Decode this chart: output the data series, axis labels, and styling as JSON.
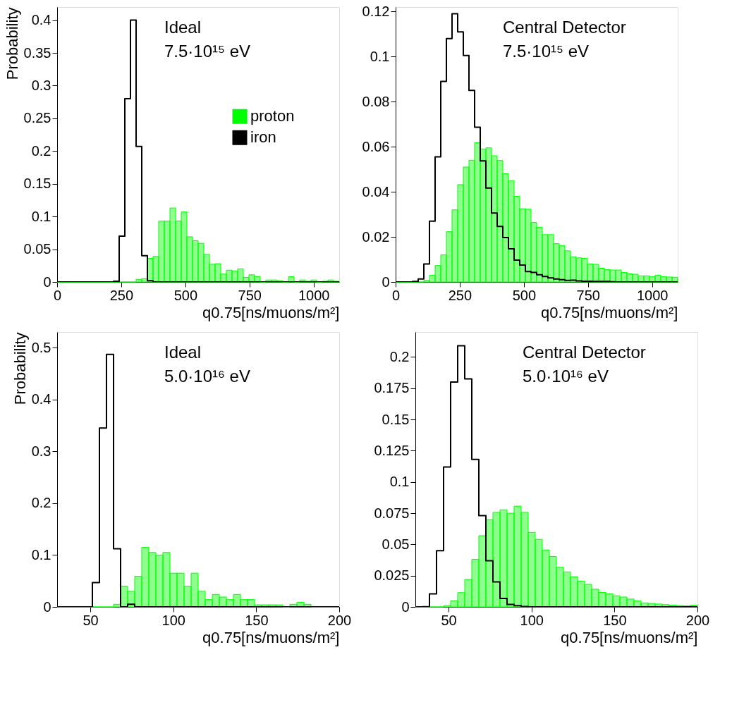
{
  "chart_data": [
    {
      "type": "histogram",
      "xlabel": "q0.75[ns/muons/m²]",
      "ylabel": "Probability",
      "annotations": [
        "Ideal",
        "7.5·10¹⁵ eV"
      ],
      "legend": "right",
      "xlim": [
        0,
        1100
      ],
      "xticks": [
        0,
        250,
        500,
        750,
        1000
      ],
      "ylim": [
        0,
        0.42
      ],
      "yticks": [
        0,
        0.05,
        0.1,
        0.15,
        0.2,
        0.25,
        0.3,
        0.35,
        0.4
      ],
      "bins": [
        0,
        22,
        44,
        66,
        88,
        110,
        132,
        154,
        176,
        198,
        220,
        242,
        264,
        286,
        308,
        330,
        352,
        374,
        396,
        418,
        440,
        462,
        484,
        506,
        528,
        550,
        572,
        594,
        616,
        638,
        660,
        682,
        704,
        726,
        748,
        770,
        792,
        814,
        836,
        858,
        880,
        902,
        924,
        946,
        968,
        990,
        1012,
        1034,
        1056,
        1078,
        1100
      ],
      "series": [
        {
          "name": "proton",
          "color": "#00ff00",
          "values": [
            0,
            0,
            0,
            0,
            0,
            0,
            0,
            0,
            0,
            0,
            0,
            0,
            0,
            0,
            0.004,
            0.005,
            0.036,
            0.039,
            0.093,
            0.093,
            0.113,
            0.093,
            0.107,
            0.069,
            0.063,
            0.059,
            0.042,
            0.027,
            0.028,
            0.012,
            0.018,
            0.017,
            0.02,
            0.007,
            0.011,
            0.008,
            0,
            0.003,
            0.003,
            0.002,
            0,
            0.008,
            0,
            0.003,
            0.001,
            0.003,
            0,
            0.001,
            0.003,
            0.001
          ]
        },
        {
          "name": "iron",
          "type": "step",
          "color": "#000000",
          "x": [
            0,
            22,
            44,
            66,
            88,
            110,
            132,
            154,
            176,
            198,
            220,
            242,
            264,
            286,
            308,
            330,
            352,
            374,
            396,
            418,
            440,
            462,
            484,
            506,
            528,
            550,
            572,
            594,
            616,
            638,
            660,
            682,
            704,
            726,
            748,
            770,
            792,
            814,
            836,
            858,
            880,
            902,
            924,
            946,
            968,
            990,
            1012,
            1034,
            1056,
            1078,
            1100
          ],
          "values": [
            0,
            0,
            0,
            0,
            0,
            0,
            0,
            0,
            0,
            0,
            0.001,
            0.07,
            0.28,
            0.4,
            0.207,
            0.04,
            0.002,
            0,
            0,
            0,
            0,
            0,
            0,
            0,
            0,
            0,
            0,
            0,
            0,
            0,
            0,
            0,
            0,
            0,
            0,
            0,
            0,
            0,
            0,
            0,
            0,
            0,
            0,
            0,
            0,
            0,
            0,
            0,
            0,
            0,
            0
          ]
        }
      ]
    },
    {
      "type": "histogram",
      "xlabel": "q0.75[ns/muons/m²]",
      "annotations": [
        "Central Detector",
        "7.5·10¹⁵ eV"
      ],
      "xlim": [
        0,
        1100
      ],
      "xticks": [
        0,
        250,
        500,
        750,
        1000
      ],
      "ylim": [
        0,
        0.122
      ],
      "yticks": [
        0,
        0.02,
        0.04,
        0.06,
        0.08,
        0.1,
        0.12
      ],
      "bins": [
        0,
        22,
        44,
        66,
        88,
        110,
        132,
        154,
        176,
        198,
        220,
        242,
        264,
        286,
        308,
        330,
        352,
        374,
        396,
        418,
        440,
        462,
        484,
        506,
        528,
        550,
        572,
        594,
        616,
        638,
        660,
        682,
        704,
        726,
        748,
        770,
        792,
        814,
        836,
        858,
        880,
        902,
        924,
        946,
        968,
        990,
        1012,
        1034,
        1056,
        1078,
        1100
      ],
      "series": [
        {
          "color": "#00ff00",
          "values": [
            0,
            0,
            0,
            0,
            0,
            0.0007,
            0.003,
            0.0073,
            0.012,
            0.0223,
            0.032,
            0.0432,
            0.051,
            0.054,
            0.0618,
            0.059,
            0.0595,
            0.056,
            0.0539,
            0.048,
            0.045,
            0.038,
            0.0325,
            0.0323,
            0.0264,
            0.0243,
            0.021,
            0.021,
            0.017,
            0.0162,
            0.0138,
            0.0112,
            0.0107,
            0.0105,
            0.008,
            0.0078,
            0.0061,
            0.0055,
            0.0053,
            0.0053,
            0.0042,
            0.0036,
            0.0034,
            0.0027,
            0.0027,
            0.0024,
            0.003,
            0.0024,
            0.0022,
            0.0021
          ]
        },
        {
          "type": "step",
          "color": "#000000",
          "x": [
            0,
            22,
            44,
            66,
            88,
            110,
            132,
            154,
            176,
            198,
            220,
            242,
            264,
            286,
            308,
            330,
            352,
            374,
            396,
            418,
            440,
            462,
            484,
            506,
            528,
            550,
            572,
            594,
            616,
            638,
            660,
            682,
            704,
            726,
            748,
            770,
            792,
            814,
            836,
            858,
            880,
            902,
            924,
            946,
            968,
            990,
            1012,
            1034,
            1056,
            1078,
            1100
          ],
          "values": [
            0,
            0,
            0,
            0.0002,
            0.0013,
            0.008,
            0.027,
            0.0555,
            0.089,
            0.108,
            0.119,
            0.111,
            0.1005,
            0.085,
            0.0687,
            0.0537,
            0.0417,
            0.0306,
            0.0246,
            0.0197,
            0.0147,
            0.0097,
            0.0075,
            0.0046,
            0.0042,
            0.0032,
            0.0024,
            0.0018,
            0.0013,
            0.001,
            0.0007,
            0.0008,
            0.0005,
            0.0003,
            0.0003,
            0.0002,
            0.0002,
            0.0002,
            0.0001,
            0,
            0,
            0,
            0,
            0,
            0,
            0,
            0,
            0,
            0,
            0,
            0
          ]
        }
      ]
    },
    {
      "type": "histogram",
      "xlabel": "q0.75[ns/muons/m²]",
      "ylabel": "Probability",
      "annotations": [
        "Ideal",
        "5.0·10¹⁶ eV"
      ],
      "xlim": [
        30,
        200
      ],
      "xticks": [
        50,
        100,
        150,
        200
      ],
      "ylim": [
        0,
        0.53
      ],
      "yticks": [
        0,
        0.1,
        0.2,
        0.3,
        0.4,
        0.5
      ],
      "bins": [
        30,
        34.25,
        38.5,
        42.75,
        47,
        51.25,
        55.5,
        59.75,
        64,
        68.25,
        72.5,
        76.75,
        81,
        85.25,
        89.5,
        93.75,
        98,
        102.25,
        106.5,
        110.75,
        115,
        119.25,
        123.5,
        127.75,
        132,
        136.25,
        140.5,
        144.75,
        149,
        153.25,
        157.5,
        161.75,
        166,
        170.25,
        174.5,
        178.75,
        183,
        187.25,
        191.5,
        195.75,
        200
      ],
      "series": [
        {
          "color": "#00ff00",
          "values": [
            0,
            0,
            0,
            0,
            0,
            0,
            0,
            0,
            0.005,
            0.04,
            0.03,
            0.059,
            0.115,
            0.105,
            0.1,
            0.105,
            0.065,
            0.065,
            0.04,
            0.065,
            0.03,
            0.014,
            0.024,
            0.019,
            0.014,
            0.024,
            0.014,
            0.014,
            0.004,
            0.004,
            0.004,
            0.004,
            0,
            0.005,
            0.009,
            0.005,
            0,
            0,
            0,
            0
          ]
        },
        {
          "type": "step",
          "color": "#000000",
          "x": [
            30,
            34.25,
            38.5,
            42.75,
            47,
            51.25,
            55.5,
            59.75,
            64,
            68.25,
            72.5,
            76.75,
            81,
            85.25,
            89.5,
            93.75,
            98,
            102.25,
            106.5,
            110.75,
            115,
            119.25,
            123.5,
            127.75,
            132,
            136.25,
            140.5,
            144.75,
            149,
            153.25,
            157.5,
            161.75,
            166,
            170.25,
            174.5,
            178.75,
            183,
            187.25,
            191.5,
            195.75,
            200
          ],
          "values": [
            0,
            0,
            0,
            0,
            0,
            0.047,
            0.345,
            0.487,
            0.112,
            0,
            0.005,
            0,
            0,
            0,
            0,
            0,
            0,
            0,
            0,
            0,
            0,
            0,
            0,
            0,
            0,
            0,
            0,
            0,
            0,
            0,
            0,
            0,
            0,
            0,
            0,
            0,
            0,
            0,
            0,
            0,
            0
          ]
        }
      ]
    },
    {
      "type": "histogram",
      "xlabel": "q0.75[ns/muons/m²]",
      "annotations": [
        "Central Detector",
        "5.0·10¹⁶ eV"
      ],
      "xlim": [
        30,
        200
      ],
      "xticks": [
        50,
        100,
        150,
        200
      ],
      "ylim": [
        0,
        0.22
      ],
      "yticks": [
        0,
        0.025,
        0.05,
        0.075,
        0.1,
        0.125,
        0.15,
        0.175,
        0.2
      ],
      "bins": [
        30,
        34.25,
        38.5,
        42.75,
        47,
        51.25,
        55.5,
        59.75,
        64,
        68.25,
        72.5,
        76.75,
        81,
        85.25,
        89.5,
        93.75,
        98,
        102.25,
        106.5,
        110.75,
        115,
        119.25,
        123.5,
        127.75,
        132,
        136.25,
        140.5,
        144.75,
        149,
        153.25,
        157.5,
        161.75,
        166,
        170.25,
        174.5,
        178.75,
        183,
        187.25,
        191.5,
        195.75,
        200
      ],
      "series": [
        {
          "color": "#00ff00",
          "values": [
            0,
            0,
            0,
            0,
            0.001,
            0.005,
            0.0114,
            0.022,
            0.038,
            0.057,
            0.0698,
            0.0756,
            0.0777,
            0.075,
            0.0806,
            0.0756,
            0.0596,
            0.054,
            0.0456,
            0.0403,
            0.0317,
            0.028,
            0.0242,
            0.0207,
            0.018,
            0.0142,
            0.0116,
            0.0105,
            0.0089,
            0.0079,
            0.0063,
            0.0049,
            0.0032,
            0.0028,
            0.0023,
            0.0018,
            0.0014,
            0.0011,
            0.0009,
            0.0014
          ]
        },
        {
          "type": "step",
          "color": "#000000",
          "x": [
            30,
            34.25,
            38.5,
            42.75,
            47,
            51.25,
            55.5,
            59.75,
            64,
            68.25,
            72.5,
            76.75,
            81,
            85.25,
            89.5,
            93.75,
            98,
            102.25,
            106.5,
            110.75,
            115,
            119.25,
            123.5,
            127.75,
            132,
            136.25,
            140.5,
            144.75,
            149,
            153.25,
            157.5,
            161.75,
            166,
            170.25,
            174.5,
            178.75,
            183,
            187.25,
            191.5,
            195.75,
            200
          ],
          "values": [
            0,
            0.0002,
            0.0105,
            0.045,
            0.112,
            0.18,
            0.209,
            0.1825,
            0.118,
            0.073,
            0.037,
            0.02,
            0.0067,
            0.002,
            0.001,
            0.0003,
            0,
            0,
            0,
            0,
            0,
            0,
            0,
            0,
            0,
            0,
            0,
            0,
            0,
            0,
            0,
            0,
            0,
            0,
            0,
            0,
            0,
            0,
            0,
            0,
            0
          ]
        }
      ]
    }
  ]
}
